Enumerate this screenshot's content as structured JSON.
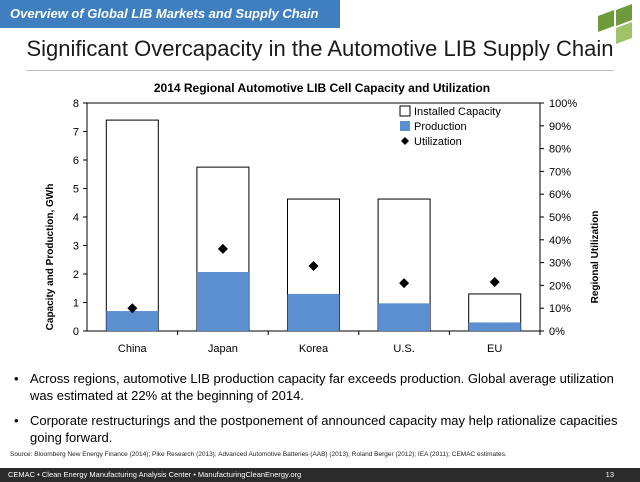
{
  "header": {
    "banner": "Overview of Global LIB Markets and Supply Chain",
    "title": "Significant Overcapacity in the Automotive LIB Supply Chain"
  },
  "chart_data": {
    "type": "bar",
    "title": "2014 Regional Automotive LIB Cell Capacity and Utilization",
    "categories": [
      "China",
      "Japan",
      "Korea",
      "U.S.",
      "EU"
    ],
    "series": [
      {
        "name": "Installed Capacity",
        "values": [
          7.4,
          5.75,
          4.63,
          4.63,
          1.3
        ]
      },
      {
        "name": "Production",
        "values": [
          0.7,
          2.07,
          1.3,
          0.97,
          0.3
        ]
      },
      {
        "name": "Utilization",
        "values": [
          10,
          36,
          28.5,
          21,
          21.5
        ]
      }
    ],
    "ylabel": "Capacity and Production, GWh",
    "y2label": "Regional Utilization",
    "ylim": [
      0,
      8
    ],
    "y2lim": [
      0,
      100
    ],
    "yticks": [
      "0",
      "1",
      "2",
      "3",
      "4",
      "5",
      "6",
      "7",
      "8"
    ],
    "y2ticks": [
      "0%",
      "10%",
      "20%",
      "30%",
      "40%",
      "50%",
      "60%",
      "70%",
      "80%",
      "90%",
      "100%"
    ],
    "legend_position": "top-right",
    "colors": {
      "capacity_fill": "#ffffff",
      "production": "#5b8fcf",
      "utilization": "#000000",
      "frame": "#000000"
    }
  },
  "bullets": [
    "Across regions, automotive LIB production capacity far exceeds production. Global average utilization was estimated at 22% at the beginning of 2014.",
    "Corporate restructurings and the postponement of announced capacity may help rationalize capacities going forward."
  ],
  "source": "Source: Bloomberg New Energy Finance (2014); Pike Research (2013); Advanced Automotive Batteries (AAB) (2013); Roland Berger (2012); IEA (2011); CEMAC estimates.",
  "footer": {
    "left": "CEMAC • Clean Energy Manufacturing Analysis Center  • ManufacturingCleanEnergy.org",
    "page": "13"
  },
  "icons": {
    "logo": "cemac-logo-icon",
    "bullet": "bullet-icon"
  },
  "brand_colors": {
    "banner": "#3f7fc0",
    "footer": "#2b2b2b",
    "logo_green": "#6f9a3c"
  }
}
